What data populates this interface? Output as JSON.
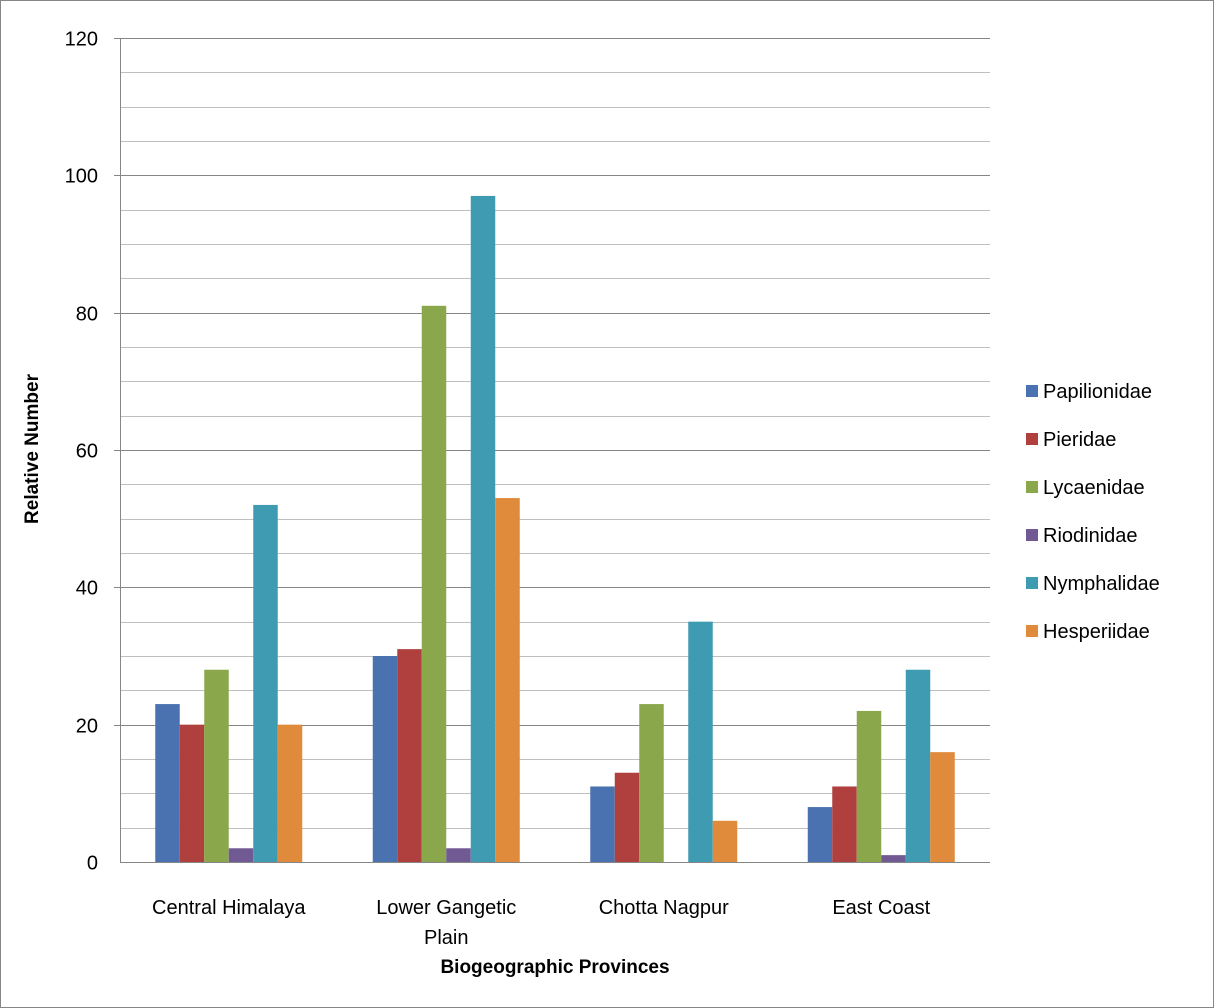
{
  "chart_data": {
    "type": "bar",
    "xlabel": "Biogeographic Provinces",
    "ylabel": "Relative Number",
    "ylim": [
      0,
      120
    ],
    "major_ticks": [
      0,
      20,
      40,
      60,
      80,
      100,
      120
    ],
    "minor_step": 5,
    "grid": true,
    "legend_position": "right",
    "categories": [
      [
        "Central Himalaya"
      ],
      [
        "Lower Gangetic",
        "Plain"
      ],
      [
        "Chotta Nagpur"
      ],
      [
        "East Coast"
      ]
    ],
    "series": [
      {
        "name": "Papilionidae",
        "color": "#4a72b0",
        "values": [
          23,
          30,
          11,
          8
        ]
      },
      {
        "name": "Pieridae",
        "color": "#b0403d",
        "values": [
          20,
          31,
          13,
          11
        ]
      },
      {
        "name": "Lycaenidae",
        "color": "#8aa74c",
        "values": [
          28,
          81,
          23,
          22
        ]
      },
      {
        "name": "Riodinidae",
        "color": "#715a94",
        "values": [
          2,
          2,
          0,
          1
        ]
      },
      {
        "name": "Nymphalidae",
        "color": "#3f9bb2",
        "values": [
          52,
          97,
          35,
          28
        ]
      },
      {
        "name": "Hesperiidae",
        "color": "#e08a3c",
        "values": [
          20,
          53,
          6,
          16
        ]
      }
    ]
  }
}
